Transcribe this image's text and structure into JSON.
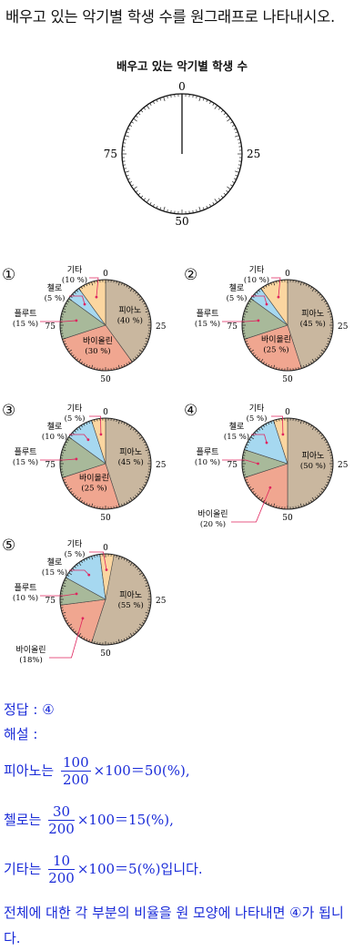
{
  "question": "배우고 있는 악기별 학생 수를 원그래프로 나타내시오.",
  "blank_chart": {
    "title": "배우고 있는 악기별 학생 수",
    "scale_labels": [
      "0",
      "25",
      "50",
      "75"
    ]
  },
  "options_data": [
    {
      "number": "①",
      "slices": [
        {
          "name": "피아노",
          "pct_label": "(40 %)",
          "value": 40,
          "color": "#c9b79f"
        },
        {
          "name": "바이올린",
          "pct_label": "(30 %)",
          "value": 30,
          "color": "#f0a690"
        },
        {
          "name": "플루트",
          "pct_label": "(15 %)",
          "value": 15,
          "color": "#a8b99a"
        },
        {
          "name": "첼로",
          "pct_label": "(5 %)",
          "value": 5,
          "color": "#a6d8f0"
        },
        {
          "name": "기타",
          "pct_label": "(10 %)",
          "value": 10,
          "color": "#fbd6a0"
        }
      ]
    },
    {
      "number": "②",
      "slices": [
        {
          "name": "피아노",
          "pct_label": "(45 %)",
          "value": 45,
          "color": "#c9b79f"
        },
        {
          "name": "바이올린",
          "pct_label": "(25 %)",
          "value": 25,
          "color": "#f0a690"
        },
        {
          "name": "플루트",
          "pct_label": "(15 %)",
          "value": 15,
          "color": "#a8b99a"
        },
        {
          "name": "첼로",
          "pct_label": "(5 %)",
          "value": 5,
          "color": "#a6d8f0"
        },
        {
          "name": "기타",
          "pct_label": "(10 %)",
          "value": 10,
          "color": "#fbd6a0"
        }
      ]
    },
    {
      "number": "③",
      "slices": [
        {
          "name": "피아노",
          "pct_label": "(45 %)",
          "value": 45,
          "color": "#c9b79f"
        },
        {
          "name": "바이올린",
          "pct_label": "(25 %)",
          "value": 25,
          "color": "#f0a690"
        },
        {
          "name": "플루트",
          "pct_label": "(15 %)",
          "value": 15,
          "color": "#a8b99a"
        },
        {
          "name": "첼로",
          "pct_label": "(10 %)",
          "value": 10,
          "color": "#a6d8f0"
        },
        {
          "name": "기타",
          "pct_label": "(5 %)",
          "value": 5,
          "color": "#fbd6a0"
        }
      ]
    },
    {
      "number": "④",
      "slices": [
        {
          "name": "피아노",
          "pct_label": "(50 %)",
          "value": 50,
          "color": "#c9b79f"
        },
        {
          "name": "바이올린",
          "pct_label": "(20 %)",
          "value": 20,
          "color": "#f0a690"
        },
        {
          "name": "플루트",
          "pct_label": "(10 %)",
          "value": 10,
          "color": "#a8b99a"
        },
        {
          "name": "첼로",
          "pct_label": "(15 %)",
          "value": 15,
          "color": "#a6d8f0"
        },
        {
          "name": "기타",
          "pct_label": "(5 %)",
          "value": 5,
          "color": "#fbd6a0"
        }
      ]
    },
    {
      "number": "⑤",
      "slices": [
        {
          "name": "피아노",
          "pct_label": "(55 %)",
          "value": 55,
          "color": "#c9b79f"
        },
        {
          "name": "바이올린",
          "pct_label": "(18%)",
          "value": 18,
          "color": "#f0a690"
        },
        {
          "name": "플루트",
          "pct_label": "(10 %)",
          "value": 10,
          "color": "#a8b99a"
        },
        {
          "name": "첼로",
          "pct_label": "(15 %)",
          "value": 15,
          "color": "#a6d8f0"
        },
        {
          "name": "기타",
          "pct_label": "(5 %)",
          "value": 5,
          "color": "#fbd6a0"
        }
      ]
    }
  ],
  "solution": {
    "answer_label": "정답 : ④",
    "explanation_label": "해설 :",
    "piano": {
      "prefix": "피아노는",
      "num": "100",
      "den": "200",
      "rest": "×100＝50(%),"
    },
    "cello": {
      "prefix": "첼로는",
      "num": "30",
      "den": "200",
      "rest": "×100＝15(%),"
    },
    "guitar": {
      "prefix": "기타는",
      "num": "10",
      "den": "200",
      "rest": "×100＝5(%)",
      "suffix": "입니다."
    },
    "conclusion": "전체에 대한 각 부분의 비율을 원 모양에 나타내면 ④가 됩니다."
  }
}
